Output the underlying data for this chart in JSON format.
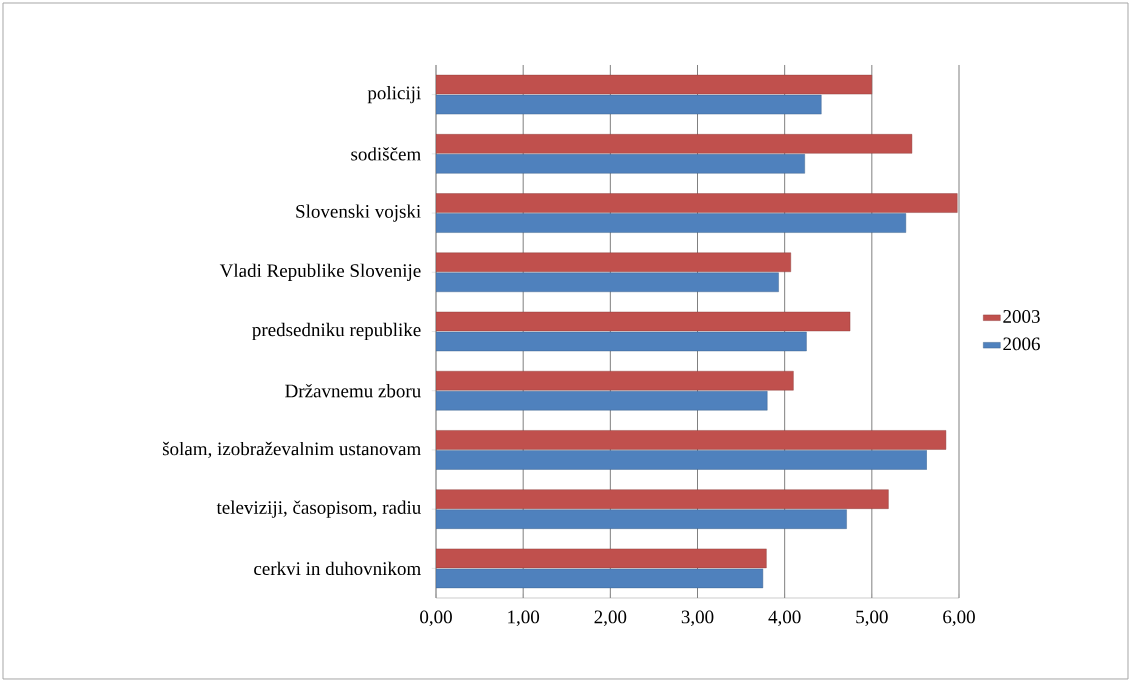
{
  "chart_data": {
    "type": "bar",
    "orientation": "horizontal",
    "categories": [
      "policiji",
      "sodiščem",
      "Slovenski vojski",
      "Vladi Republike Slovenije",
      "predsedniku republike",
      "Državnemu zboru",
      "šolam, izobraževalnim ustanovam",
      "televiziji, časopisom, radiu",
      "cerkvi in duhovnikom"
    ],
    "series": [
      {
        "name": "2003",
        "color": "#c0504d",
        "values": [
          5.0,
          5.46,
          5.98,
          4.07,
          4.75,
          4.1,
          5.85,
          5.19,
          3.79
        ]
      },
      {
        "name": "2006",
        "color": "#4f81bd",
        "values": [
          4.42,
          4.23,
          5.39,
          3.93,
          4.25,
          3.8,
          5.63,
          4.71,
          3.75
        ]
      }
    ],
    "xlim": [
      0,
      6
    ],
    "xticks": [
      {
        "value": 0,
        "label": "0,00"
      },
      {
        "value": 1,
        "label": "1,00"
      },
      {
        "value": 2,
        "label": "2,00"
      },
      {
        "value": 3,
        "label": "3,00"
      },
      {
        "value": 4,
        "label": "4,00"
      },
      {
        "value": 5,
        "label": "5,00"
      },
      {
        "value": 6,
        "label": "6,00"
      }
    ],
    "grid": "x",
    "legend": "right"
  }
}
